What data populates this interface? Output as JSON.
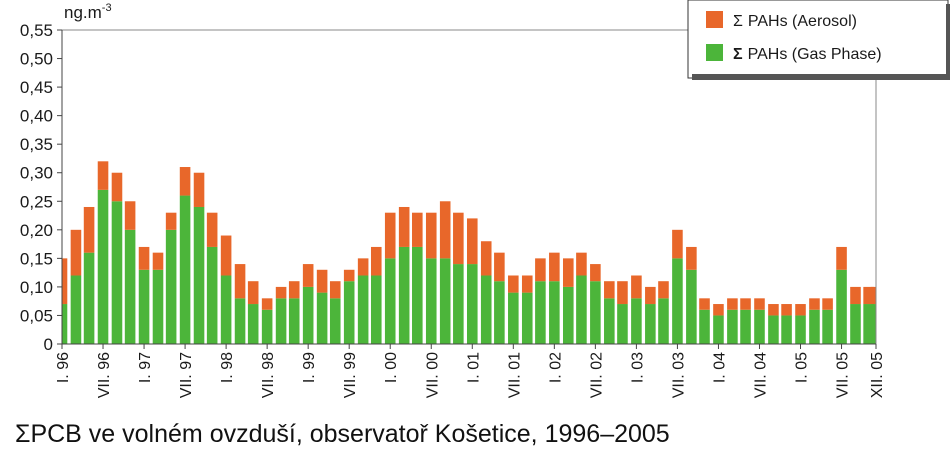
{
  "caption": "ΣPCB ve volném ovzduší, observatoř Košetice, 1996–2005",
  "colors": {
    "aerosol": "#e8672a",
    "gas": "#4cb53a",
    "axis": "#444444",
    "legend_border": "#333333"
  },
  "chart_data": {
    "type": "bar",
    "stacked": true,
    "title": "",
    "subtitle": "",
    "xlabel": "",
    "ylabel": "ng.m-3",
    "ylabel_base": "ng.m",
    "ylabel_exp": "-3",
    "ylim": [
      0,
      0.55
    ],
    "yticks": [
      0,
      0.05,
      0.1,
      0.15,
      0.2,
      0.25,
      0.3,
      0.35,
      0.4,
      0.45,
      0.5,
      0.55
    ],
    "ytick_labels": [
      "0",
      "0,05",
      "0,10",
      "0,15",
      "0,20",
      "0,25",
      "0,30",
      "0,35",
      "0,40",
      "0,45",
      "0,50",
      "0,55"
    ],
    "grid": false,
    "legend_placement": "top-right",
    "x_range": [
      1996.0,
      2005.92
    ],
    "x_tick_labels": [
      {
        "label": "I. 96",
        "x": 1996.0
      },
      {
        "label": "VII. 96",
        "x": 1996.5
      },
      {
        "label": "I. 97",
        "x": 1997.0
      },
      {
        "label": "VII. 97",
        "x": 1997.5
      },
      {
        "label": "I. 98",
        "x": 1998.0
      },
      {
        "label": "VII. 98",
        "x": 1998.5
      },
      {
        "label": "I. 99",
        "x": 1999.0
      },
      {
        "label": "VII. 99",
        "x": 1999.5
      },
      {
        "label": "I. 00",
        "x": 2000.0
      },
      {
        "label": "VII. 00",
        "x": 2000.5
      },
      {
        "label": "I. 01",
        "x": 2001.0
      },
      {
        "label": "VII. 01",
        "x": 2001.5
      },
      {
        "label": "I. 02",
        "x": 2002.0
      },
      {
        "label": "VII. 02",
        "x": 2002.5
      },
      {
        "label": "I. 03",
        "x": 2003.0
      },
      {
        "label": "VII. 03",
        "x": 2003.5
      },
      {
        "label": "I. 04",
        "x": 2004.0
      },
      {
        "label": "VII. 04",
        "x": 2004.5
      },
      {
        "label": "I. 05",
        "x": 2005.0
      },
      {
        "label": "VII. 05",
        "x": 2005.5
      },
      {
        "label": "XII. 05",
        "x": 2005.92
      }
    ],
    "legend": [
      {
        "sigma": "Σ",
        "label": "PAHs (Aerosol)",
        "series": "aerosol",
        "bold_sigma": false
      },
      {
        "sigma": "Σ",
        "label": "PAHs (Gas Phase)",
        "series": "gas",
        "bold_sigma": true
      }
    ],
    "series": [
      {
        "name": "Σ PAHs (Gas Phase)",
        "key": "gas",
        "x": [
          1996.0,
          1996.17,
          1996.33,
          1996.5,
          1996.67,
          1996.83,
          1997.0,
          1997.17,
          1997.33,
          1997.5,
          1997.67,
          1997.83,
          1998.0,
          1998.17,
          1998.33,
          1998.5,
          1998.67,
          1998.83,
          1999.0,
          1999.17,
          1999.33,
          1999.5,
          1999.67,
          1999.83,
          2000.0,
          2000.17,
          2000.33,
          2000.5,
          2000.67,
          2000.83,
          2001.0,
          2001.17,
          2001.33,
          2001.5,
          2001.67,
          2001.83,
          2002.0,
          2002.17,
          2002.33,
          2002.5,
          2002.67,
          2002.83,
          2003.0,
          2003.17,
          2003.33,
          2003.5,
          2003.67,
          2003.83,
          2004.0,
          2004.17,
          2004.33,
          2004.5,
          2004.67,
          2004.83,
          2005.0,
          2005.17,
          2005.33,
          2005.5,
          2005.67,
          2005.83,
          2005.92
        ],
        "values": [
          0.07,
          0.12,
          0.16,
          0.27,
          0.25,
          0.2,
          0.13,
          0.13,
          0.2,
          0.26,
          0.24,
          0.17,
          0.12,
          0.08,
          0.07,
          0.06,
          0.08,
          0.08,
          0.1,
          0.09,
          0.08,
          0.11,
          0.12,
          0.12,
          0.15,
          0.17,
          0.17,
          0.15,
          0.15,
          0.14,
          0.14,
          0.12,
          0.11,
          0.09,
          0.09,
          0.11,
          0.11,
          0.1,
          0.12,
          0.11,
          0.08,
          0.07,
          0.08,
          0.07,
          0.08,
          0.15,
          0.13,
          0.06,
          0.05,
          0.06,
          0.06,
          0.06,
          0.05,
          0.05,
          0.05,
          0.06,
          0.06,
          0.13,
          0.07,
          0.07,
          0.07
        ]
      },
      {
        "name": "Σ PAHs (Aerosol)",
        "key": "aerosol",
        "x": [
          1996.0,
          1996.17,
          1996.33,
          1996.5,
          1996.67,
          1996.83,
          1997.0,
          1997.17,
          1997.33,
          1997.5,
          1997.67,
          1997.83,
          1998.0,
          1998.17,
          1998.33,
          1998.5,
          1998.67,
          1998.83,
          1999.0,
          1999.17,
          1999.33,
          1999.5,
          1999.67,
          1999.83,
          2000.0,
          2000.17,
          2000.33,
          2000.5,
          2000.67,
          2000.83,
          2001.0,
          2001.17,
          2001.33,
          2001.5,
          2001.67,
          2001.83,
          2002.0,
          2002.17,
          2002.33,
          2002.5,
          2002.67,
          2002.83,
          2003.0,
          2003.17,
          2003.33,
          2003.5,
          2003.67,
          2003.83,
          2004.0,
          2004.17,
          2004.33,
          2004.5,
          2004.67,
          2004.83,
          2005.0,
          2005.17,
          2005.33,
          2005.5,
          2005.67,
          2005.83,
          2005.92
        ],
        "values": [
          0.08,
          0.08,
          0.08,
          0.05,
          0.05,
          0.05,
          0.04,
          0.03,
          0.03,
          0.05,
          0.06,
          0.06,
          0.07,
          0.06,
          0.04,
          0.02,
          0.02,
          0.03,
          0.04,
          0.04,
          0.03,
          0.02,
          0.03,
          0.05,
          0.08,
          0.07,
          0.06,
          0.08,
          0.1,
          0.09,
          0.08,
          0.06,
          0.05,
          0.03,
          0.03,
          0.04,
          0.05,
          0.05,
          0.04,
          0.03,
          0.03,
          0.04,
          0.04,
          0.03,
          0.03,
          0.05,
          0.04,
          0.02,
          0.02,
          0.02,
          0.02,
          0.02,
          0.02,
          0.02,
          0.02,
          0.02,
          0.02,
          0.04,
          0.03,
          0.03,
          0.03
        ]
      }
    ]
  }
}
